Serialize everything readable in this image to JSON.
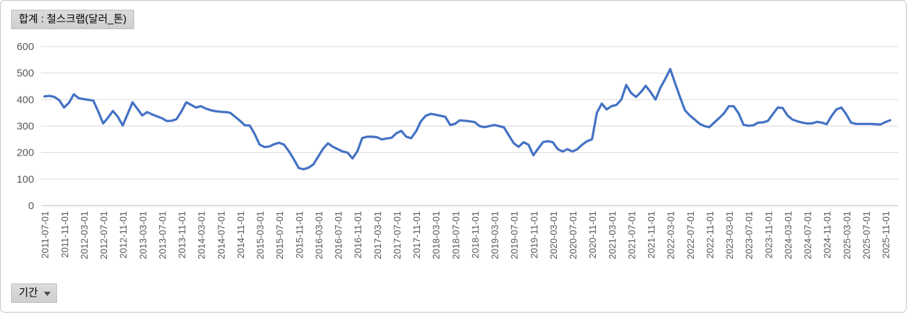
{
  "pivot_buttons": {
    "value_field_label": "합계 : 철스크랩(달러_톤)",
    "axis_field_label": "기간"
  },
  "chart_data": {
    "type": "line",
    "title": "합계 : 철스크랩(달러_톤)",
    "series_name": "합계 : 철스크랩(달러_톤)",
    "series_color": "#4472C4",
    "grid": "horizontal",
    "legend": "none",
    "ylim": [
      0,
      600
    ],
    "y_ticks": [
      0,
      100,
      200,
      300,
      400,
      500,
      600
    ],
    "x_axis_field": "기간",
    "x_frequency": "monthly",
    "x_start_month": "2011-07",
    "x_end_month": "2025-12",
    "x_tick_every_months": 4,
    "x_tick_labels": [
      "2011-07-01",
      "2011-11-01",
      "2012-03-01",
      "2012-07-01",
      "2012-11-01",
      "2013-03-01",
      "2013-07-01",
      "2013-11-01",
      "2014-03-01",
      "2014-07-01",
      "2014-11-01",
      "2015-03-01",
      "2015-07-01",
      "2015-11-01",
      "2016-03-01",
      "2016-07-01",
      "2016-11-01",
      "2017-03-01",
      "2017-07-01",
      "2017-11-01",
      "2018-03-01",
      "2018-07-01",
      "2018-11-01",
      "2019-03-01",
      "2019-07-01",
      "2019-11-01",
      "2020-03-01",
      "2020-07-01",
      "2020-11-01",
      "2021-03-01",
      "2021-07-01",
      "2021-11-01",
      "2022-03-01",
      "2022-07-01",
      "2022-11-01",
      "2023-03-01",
      "2023-07-01",
      "2023-11-01",
      "2024-03-01",
      "2024-07-01",
      "2024-11-01",
      "2025-03-01",
      "2025-07-01",
      "2025-11-01"
    ],
    "monthly_values": [
      412,
      414,
      410,
      398,
      370,
      388,
      420,
      405,
      402,
      399,
      396,
      355,
      310,
      332,
      357,
      335,
      302,
      345,
      390,
      365,
      340,
      353,
      344,
      337,
      330,
      319,
      320,
      326,
      355,
      390,
      380,
      370,
      375,
      366,
      360,
      356,
      354,
      353,
      350,
      335,
      320,
      303,
      302,
      270,
      230,
      221,
      223,
      232,
      237,
      230,
      205,
      175,
      142,
      137,
      143,
      155,
      185,
      215,
      235,
      222,
      213,
      204,
      200,
      178,
      205,
      255,
      260,
      260,
      258,
      250,
      253,
      256,
      273,
      282,
      260,
      254,
      280,
      318,
      339,
      346,
      343,
      339,
      335,
      304,
      309,
      322,
      320,
      318,
      315,
      300,
      296,
      300,
      304,
      300,
      295,
      265,
      235,
      222,
      239,
      230,
      190,
      215,
      240,
      243,
      239,
      213,
      204,
      213,
      204,
      213,
      230,
      243,
      250,
      350,
      385,
      363,
      375,
      380,
      400,
      455,
      425,
      410,
      428,
      452,
      428,
      400,
      445,
      478,
      515,
      462,
      410,
      360,
      340,
      325,
      309,
      300,
      296,
      313,
      330,
      348,
      375,
      375,
      348,
      305,
      301,
      303,
      313,
      314,
      320,
      345,
      370,
      368,
      340,
      325,
      318,
      313,
      310,
      310,
      316,
      313,
      307,
      338,
      363,
      370,
      345,
      313,
      308,
      308,
      308,
      308,
      307,
      306,
      315,
      322
    ]
  }
}
